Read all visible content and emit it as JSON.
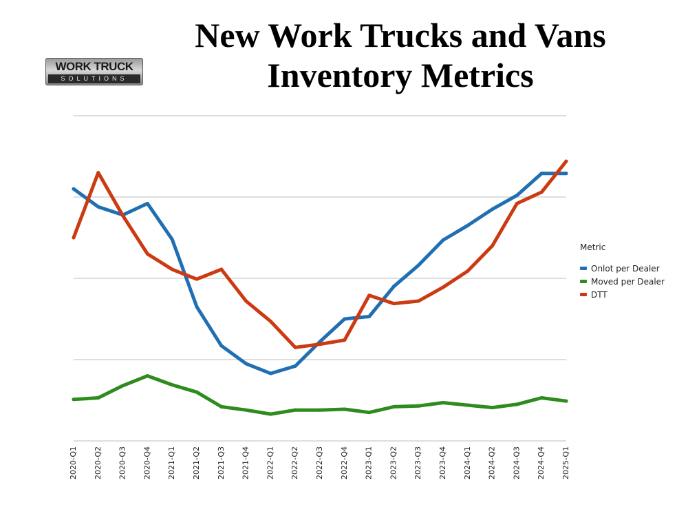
{
  "header": {
    "title_line1": "New Work Trucks and Vans",
    "title_line2": "Inventory Metrics"
  },
  "logo": {
    "top_text": "WORK TRUCK",
    "bottom_text": "SOLUTIONS"
  },
  "chart_data": {
    "type": "line",
    "title": "New Work Trucks and Vans Inventory Metrics",
    "xlabel": "",
    "ylabel": "",
    "ylim": [
      0,
      4
    ],
    "y_ticks": [
      0,
      1,
      2,
      3,
      4
    ],
    "y_tick_labels_visible": false,
    "grid": "horizontal",
    "legend_position": "right",
    "legend_title": "Metric",
    "categories": [
      "2020-Q1",
      "2020-Q2",
      "2020-Q3",
      "2020-Q4",
      "2021-Q1",
      "2021-Q2",
      "2021-Q3",
      "2021-Q4",
      "2022-Q1",
      "2022-Q2",
      "2022-Q3",
      "2022-Q4",
      "2023-Q1",
      "2023-Q2",
      "2023-Q3",
      "2023-Q4",
      "2024-Q1",
      "2024-Q2",
      "2024-Q3",
      "2024-Q4",
      "2025-Q1"
    ],
    "series": [
      {
        "name": "Onlot per Dealer",
        "color": "#1f6fb2",
        "values": [
          3.1,
          2.88,
          2.78,
          2.92,
          2.48,
          1.65,
          1.17,
          0.95,
          0.83,
          0.92,
          1.22,
          1.5,
          1.53,
          1.9,
          2.16,
          2.47,
          2.65,
          2.85,
          3.02,
          3.29,
          3.29
        ]
      },
      {
        "name": "Moved per Dealer",
        "color": "#2e8b1e",
        "values": [
          0.51,
          0.53,
          0.68,
          0.8,
          0.69,
          0.6,
          0.42,
          0.38,
          0.33,
          0.38,
          0.38,
          0.39,
          0.35,
          0.42,
          0.43,
          0.47,
          0.44,
          0.41,
          0.45,
          0.53,
          0.49
        ]
      },
      {
        "name": "DTT",
        "color": "#cc3a12",
        "values": [
          2.5,
          3.3,
          2.77,
          2.3,
          2.11,
          1.99,
          2.11,
          1.72,
          1.47,
          1.15,
          1.19,
          1.24,
          1.79,
          1.69,
          1.72,
          1.89,
          2.09,
          2.4,
          2.92,
          3.06,
          3.44
        ]
      }
    ]
  }
}
